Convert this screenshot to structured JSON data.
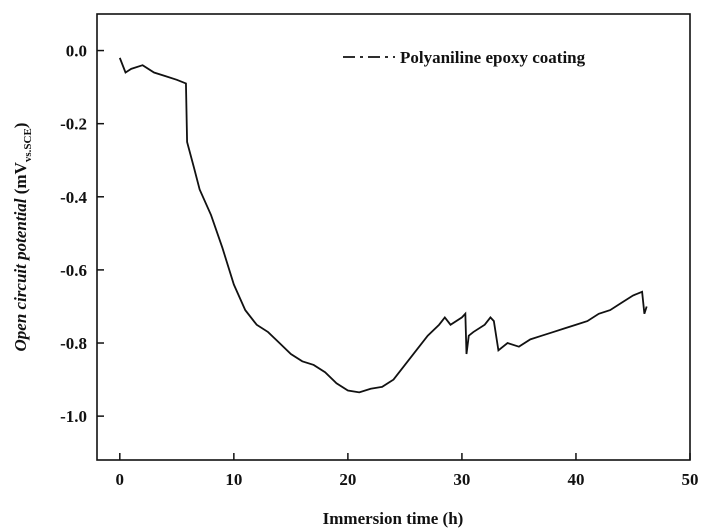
{
  "chart_data": {
    "type": "line",
    "xlabel": "Immersion time (h)",
    "ylabel": {
      "main": "Open circuit potential",
      "unit": "(mV",
      "sub": "vs.SCE",
      "close": ")"
    },
    "xlim": [
      -2,
      50
    ],
    "ylim": [
      -1.12,
      0.1
    ],
    "xticks": [
      0,
      10,
      20,
      30,
      40,
      50
    ],
    "yticks": [
      {
        "value": 0,
        "label": "0.0"
      },
      -0.2,
      -0.4,
      -0.6,
      -0.8,
      {
        "value": -1,
        "label": "-1.0"
      }
    ],
    "legend": "upper right",
    "series": [
      {
        "name": "Polyaniline epoxy coating",
        "color": "#111111",
        "x": [
          0,
          0.5,
          1,
          2,
          3,
          4,
          5,
          5.8,
          5.9,
          6.5,
          7,
          8,
          9,
          10,
          11,
          12,
          13,
          14,
          15,
          16,
          17,
          18,
          19,
          20,
          21,
          22,
          23,
          24,
          25,
          26,
          27,
          28,
          28.5,
          29,
          30,
          30.3,
          30.4,
          30.6,
          31,
          32,
          32.5,
          32.8,
          33.2,
          34,
          35,
          36,
          37,
          38,
          39,
          40,
          41,
          42,
          43,
          44,
          45,
          45.8,
          46,
          46.2
        ],
        "values": [
          -0.02,
          -0.06,
          -0.05,
          -0.04,
          -0.06,
          -0.07,
          -0.08,
          -0.09,
          -0.25,
          -0.32,
          -0.38,
          -0.45,
          -0.54,
          -0.64,
          -0.71,
          -0.75,
          -0.77,
          -0.8,
          -0.83,
          -0.85,
          -0.86,
          -0.88,
          -0.91,
          -0.93,
          -0.935,
          -0.925,
          -0.92,
          -0.9,
          -0.86,
          -0.82,
          -0.78,
          -0.75,
          -0.73,
          -0.75,
          -0.73,
          -0.72,
          -0.83,
          -0.78,
          -0.77,
          -0.75,
          -0.73,
          -0.74,
          -0.82,
          -0.8,
          -0.81,
          -0.79,
          -0.78,
          -0.77,
          -0.76,
          -0.75,
          -0.74,
          -0.72,
          -0.71,
          -0.69,
          -0.67,
          -0.66,
          -0.72,
          -0.7
        ]
      }
    ]
  }
}
